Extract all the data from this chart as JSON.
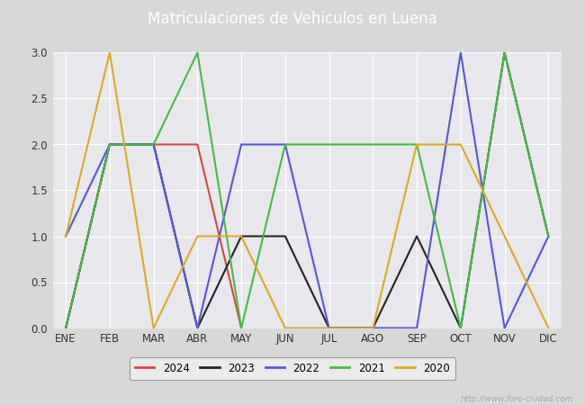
{
  "title": "Matriculaciones de Vehiculos en Luena",
  "months": [
    "ENE",
    "FEB",
    "MAR",
    "ABR",
    "MAY",
    "JUN",
    "JUL",
    "AGO",
    "SEP",
    "OCT",
    "NOV",
    "DIC"
  ],
  "series": {
    "2024": {
      "color": "#dd4444",
      "data": [
        0,
        2,
        2,
        2,
        0,
        null,
        null,
        null,
        null,
        null,
        null,
        null
      ]
    },
    "2023": {
      "color": "#222222",
      "data": [
        0,
        2,
        2,
        0,
        1,
        1,
        0,
        0,
        1,
        0,
        3,
        1
      ]
    },
    "2022": {
      "color": "#5555dd",
      "data": [
        1,
        2,
        2,
        0,
        2,
        2,
        0,
        0,
        0,
        3,
        0,
        1
      ]
    },
    "2021": {
      "color": "#44bb44",
      "data": [
        0,
        2,
        2,
        3,
        0,
        2,
        2,
        2,
        2,
        0,
        3,
        1
      ]
    },
    "2020": {
      "color": "#ddaa22",
      "data": [
        1,
        3,
        0,
        1,
        1,
        0,
        0,
        0,
        2,
        2,
        1,
        0
      ]
    }
  },
  "ylim": [
    0,
    3.0
  ],
  "yticks": [
    0.0,
    0.5,
    1.0,
    1.5,
    2.0,
    2.5,
    3.0
  ],
  "fig_bg_color": "#d8d8d8",
  "plot_bg_color": "#e8e8ec",
  "title_bg_color": "#4d8bc9",
  "title_color": "#ffffff",
  "title_fontsize": 12,
  "legend_years": [
    "2024",
    "2023",
    "2022",
    "2021",
    "2020"
  ],
  "watermark": "http://www.foro-ciudad.com",
  "grid_color": "#ffffff",
  "linewidth": 1.5
}
